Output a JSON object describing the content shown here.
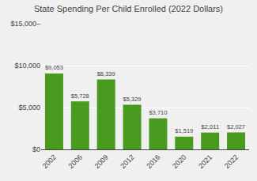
{
  "chart_data": {
    "type": "bar",
    "title": "State Spending Per Child Enrolled (2022 Dollars)",
    "categories": [
      "2002",
      "2006",
      "2009",
      "2012",
      "2016",
      "2020",
      "2021",
      "2022"
    ],
    "values": [
      9053,
      5728,
      8339,
      5329,
      3710,
      1519,
      2011,
      2027
    ],
    "value_labels": [
      "$9,053",
      "$5,728",
      "$8,339",
      "$5,329",
      "$3,710",
      "$1,519",
      "$2,011",
      "$2,027"
    ],
    "color": "#4a9a1f",
    "ylim": [
      0,
      15000
    ],
    "yticks": [
      {
        "value": 0,
        "label": "$0"
      },
      {
        "value": 5000,
        "label": "$5,000"
      },
      {
        "value": 10000,
        "label": "$10,000"
      },
      {
        "value": 15000,
        "label": "$15,000–"
      }
    ],
    "grid": true,
    "data_labels": true
  }
}
